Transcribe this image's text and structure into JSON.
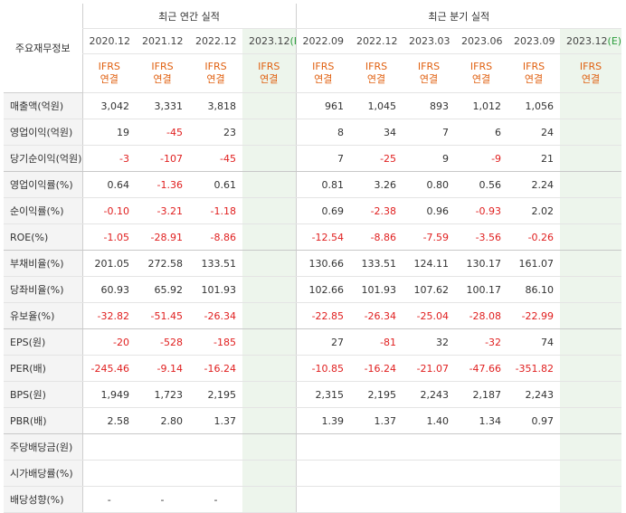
{
  "table": {
    "corner_label": "주요재무정보",
    "annual_header": "최근 연간 실적",
    "quarter_header": "최근 분기 실적",
    "annual_periods": [
      "2020.12",
      "2021.12",
      "2022.12",
      "2023.12"
    ],
    "quarter_periods": [
      "2022.09",
      "2022.12",
      "2023.03",
      "2023.06",
      "2023.09",
      "2023.12"
    ],
    "estimate_mark": "(E)",
    "ifrs_top": "IFRS",
    "ifrs_bottom": "연결",
    "rows": [
      {
        "label": "매출액(억원)",
        "values": [
          "3,042",
          "3,331",
          "3,818",
          "",
          "961",
          "1,045",
          "893",
          "1,012",
          "1,056",
          ""
        ]
      },
      {
        "label": "영업이익(억원)",
        "values": [
          "19",
          "-45",
          "23",
          "",
          "8",
          "34",
          "7",
          "6",
          "24",
          ""
        ]
      },
      {
        "label": "당기순이익(억원)",
        "values": [
          "-3",
          "-107",
          "-45",
          "",
          "7",
          "-25",
          "9",
          "-9",
          "21",
          ""
        ]
      },
      {
        "label": "영업이익률(%)",
        "values": [
          "0.64",
          "-1.36",
          "0.61",
          "",
          "0.81",
          "3.26",
          "0.80",
          "0.56",
          "2.24",
          ""
        ]
      },
      {
        "label": "순이익률(%)",
        "values": [
          "-0.10",
          "-3.21",
          "-1.18",
          "",
          "0.69",
          "-2.38",
          "0.96",
          "-0.93",
          "2.02",
          ""
        ]
      },
      {
        "label": "ROE(%)",
        "values": [
          "-1.05",
          "-28.91",
          "-8.86",
          "",
          "-12.54",
          "-8.86",
          "-7.59",
          "-3.56",
          "-0.26",
          ""
        ]
      },
      {
        "label": "부채비율(%)",
        "values": [
          "201.05",
          "272.58",
          "133.51",
          "",
          "130.66",
          "133.51",
          "124.11",
          "130.17",
          "161.07",
          ""
        ]
      },
      {
        "label": "당좌비율(%)",
        "values": [
          "60.93",
          "65.92",
          "101.93",
          "",
          "102.66",
          "101.93",
          "107.62",
          "100.17",
          "86.10",
          ""
        ]
      },
      {
        "label": "유보율(%)",
        "values": [
          "-32.82",
          "-51.45",
          "-26.34",
          "",
          "-22.85",
          "-26.34",
          "-25.04",
          "-28.08",
          "-22.99",
          ""
        ]
      },
      {
        "label": "EPS(원)",
        "values": [
          "-20",
          "-528",
          "-185",
          "",
          "27",
          "-81",
          "32",
          "-32",
          "74",
          ""
        ]
      },
      {
        "label": "PER(배)",
        "values": [
          "-245.46",
          "-9.14",
          "-16.24",
          "",
          "-10.85",
          "-16.24",
          "-21.07",
          "-47.66",
          "-351.82",
          ""
        ]
      },
      {
        "label": "BPS(원)",
        "values": [
          "1,949",
          "1,723",
          "2,195",
          "",
          "2,315",
          "2,195",
          "2,243",
          "2,187",
          "2,243",
          ""
        ]
      },
      {
        "label": "PBR(배)",
        "values": [
          "2.58",
          "2.80",
          "1.37",
          "",
          "1.39",
          "1.37",
          "1.40",
          "1.34",
          "0.97",
          ""
        ]
      },
      {
        "label": "주당배당금(원)",
        "values": [
          "",
          "",
          "",
          "",
          "",
          "",
          "",
          "",
          "",
          ""
        ]
      },
      {
        "label": "시가배당률(%)",
        "values": [
          "",
          "",
          "",
          "",
          "",
          "",
          "",
          "",
          "",
          ""
        ]
      },
      {
        "label": "배당성향(%)",
        "values": [
          "-",
          "-",
          "-",
          "",
          "",
          "",
          "",
          "",
          "",
          ""
        ]
      }
    ]
  },
  "colors": {
    "negative": "#e02020",
    "ifrs": "#e06010",
    "estimate_bg": "#edf5ec",
    "estimate_mark": "#2a9d3b"
  }
}
